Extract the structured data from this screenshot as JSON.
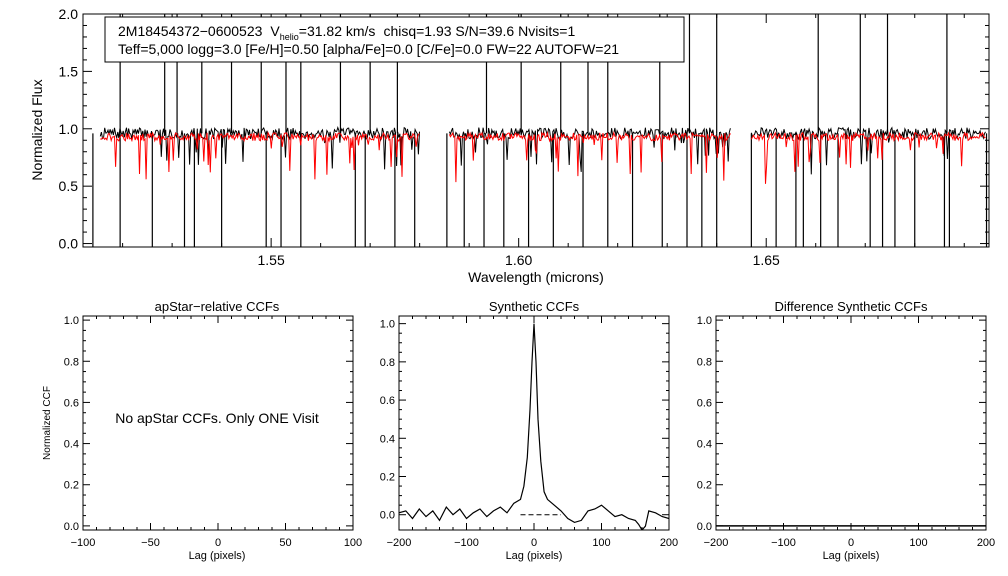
{
  "chart_data": [
    {
      "type": "line",
      "panel": "spectrum",
      "title": "",
      "xlabel": "Wavelength (microns)",
      "ylabel": "Normalized Flux",
      "xlim": [
        1.512,
        1.695
      ],
      "ylim": [
        -0.03,
        2.0
      ],
      "xticks": [
        "1.55",
        "1.60",
        "1.65"
      ],
      "yticks": [
        "0.0",
        "0.5",
        "1.0",
        "1.5",
        "2.0"
      ],
      "chips": [
        [
          1.5155,
          1.58
        ],
        [
          1.586,
          1.6428
        ],
        [
          1.647,
          1.6945
        ]
      ],
      "annotation": {
        "id": "2M18454372−0600523",
        "vhelio_label": "V",
        "vhelio_sub": "helio",
        "vhelio_value": "=31.82 km/s",
        "stats": "chisq=1.93  S/N=39.6  Nvisits=1",
        "params": "Teff=5,000 logg=3.0 [Fe/H]=0.50 [alpha/Fe]=0.0 [C/Fe]=0.0 FW=22 AUTOFW=21"
      },
      "series": [
        {
          "name": "observed",
          "color": "#000000",
          "continuum": 0.96
        },
        {
          "name": "synthetic",
          "color": "#ff0000",
          "continuum": 0.93
        }
      ],
      "spikes_up": [
        1.5195,
        1.5285,
        1.531,
        1.536,
        1.542,
        1.548,
        1.553,
        1.556,
        1.564,
        1.57,
        1.5755,
        1.5935,
        1.6005,
        1.6085,
        1.614,
        1.618,
        1.6285,
        1.6345,
        1.64,
        1.6605,
        1.669,
        1.6745,
        1.6865
      ],
      "spikes_down": [
        1.514,
        1.5195,
        1.526,
        1.5325,
        1.5345,
        1.54,
        1.549,
        1.552,
        1.556,
        1.567,
        1.569,
        1.575,
        1.579,
        1.5855,
        1.589,
        1.593,
        1.597,
        1.602,
        1.607,
        1.613,
        1.618,
        1.623,
        1.629,
        1.634,
        1.637,
        1.64,
        1.647,
        1.652,
        1.656,
        1.6575,
        1.661,
        1.6645,
        1.671,
        1.6735,
        1.676,
        1.68,
        1.686,
        1.687,
        1.6945
      ]
    },
    {
      "type": "line",
      "panel": "apstar",
      "title": "apStar−relative CCFs",
      "xlabel": "Lag (pixels)",
      "ylabel": "Normalized CCF",
      "xlim": [
        -100,
        100
      ],
      "ylim": [
        -0.02,
        1.02
      ],
      "xticks": [
        "−100",
        "−50",
        "0",
        "50",
        "100"
      ],
      "xtick_values": [
        -100,
        -50,
        0,
        50,
        100
      ],
      "yticks": [
        "0.0",
        "0.2",
        "0.4",
        "0.6",
        "0.8",
        "1.0"
      ],
      "message": "No apStar CCFs.  Only ONE Visit",
      "series": []
    },
    {
      "type": "line",
      "panel": "synthetic",
      "title": "Synthetic CCFs",
      "xlabel": "Lag (pixels)",
      "ylabel": "",
      "xlim": [
        -200,
        200
      ],
      "ylim": [
        -0.08,
        1.04
      ],
      "xticks": [
        "−200",
        "−100",
        "0",
        "100",
        "200"
      ],
      "xtick_values": [
        -200,
        -100,
        0,
        100,
        200
      ],
      "yticks": [
        "0.0",
        "0.2",
        "0.4",
        "0.6",
        "0.8",
        "1.0"
      ],
      "series": [
        {
          "name": "CCF",
          "x": [
            -200,
            -190,
            -180,
            -170,
            -160,
            -150,
            -140,
            -130,
            -120,
            -110,
            -100,
            -90,
            -80,
            -70,
            -60,
            -50,
            -40,
            -30,
            -20,
            -15,
            -10,
            -6,
            -3,
            0,
            3,
            6,
            10,
            15,
            20,
            30,
            40,
            50,
            60,
            70,
            80,
            90,
            100,
            110,
            120,
            130,
            140,
            150,
            155,
            160,
            165,
            170,
            180,
            190,
            200
          ],
          "y": [
            0.01,
            0.02,
            -0.02,
            0.03,
            -0.01,
            0.02,
            -0.03,
            0.04,
            0.0,
            0.03,
            -0.02,
            0.01,
            0.03,
            -0.01,
            0.02,
            0.04,
            0.01,
            0.06,
            0.08,
            0.15,
            0.3,
            0.55,
            0.8,
            1.0,
            0.8,
            0.5,
            0.28,
            0.12,
            0.08,
            0.05,
            0.02,
            -0.02,
            -0.04,
            -0.03,
            0.02,
            0.03,
            0.05,
            0.02,
            -0.01,
            0.0,
            -0.02,
            -0.03,
            -0.05,
            -0.08,
            -0.06,
            0.02,
            0.01,
            -0.01,
            -0.02
          ]
        },
        {
          "name": "zero",
          "style": "dashed",
          "x": [
            -20,
            40
          ],
          "y": [
            0.0,
            0.0
          ]
        }
      ]
    },
    {
      "type": "line",
      "panel": "difference",
      "title": "Difference Synthetic CCFs",
      "xlabel": "Lag (pixels)",
      "ylabel": "",
      "xlim": [
        -200,
        200
      ],
      "ylim": [
        -0.02,
        1.02
      ],
      "xticks": [
        "−200",
        "−100",
        "0",
        "100",
        "200"
      ],
      "xtick_values": [
        -200,
        -100,
        0,
        100,
        200
      ],
      "yticks": [
        "0.0",
        "0.2",
        "0.4",
        "0.6",
        "0.8",
        "1.0"
      ],
      "series": [
        {
          "name": "difference",
          "x": [
            -200,
            200
          ],
          "y": [
            0.0,
            0.0
          ]
        }
      ]
    }
  ]
}
